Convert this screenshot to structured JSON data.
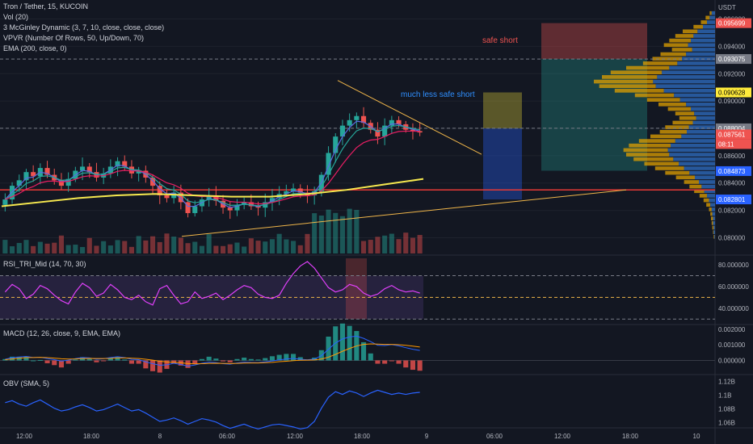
{
  "legend": {
    "symbol_line": "Tron / Tether, 15, KUCOIN",
    "vol": "Vol (20)",
    "mcginley": "3 McGinley Dynamic (3, 7, 10, close, close, close)",
    "vpvr": "VPVR (Number Of Rows, 50, Up/Down, 70)",
    "ema": "EMA (200, close, 0)"
  },
  "annotations": {
    "safe_short": "safe short",
    "much_less_safe_short": "much less safe short"
  },
  "panels": {
    "rsi": "RSI_TRI_Mid (14, 70, 30)",
    "macd": "MACD (12, 26, close, 9, EMA, EMA)",
    "obv": "OBV (SMA, 5)"
  },
  "colors": {
    "background": "#131722",
    "up": "#26a69a",
    "down": "#ef5350",
    "ema200": "#f7e94f",
    "mcginley1": "#5b6be0",
    "mcginley2": "#26a69a",
    "mcginley3": "#e91e63",
    "poc_line": "#e53935",
    "rsi_line": "#e040fb",
    "macd": "#2962ff",
    "signal": "#ff9800",
    "obv": "#2962ff",
    "vpvr_up": "#2f6fc4",
    "vpvr_down": "#e0a000",
    "label_yellow": "#ffeb3b"
  },
  "chart_data": [
    {
      "type": "candlestick",
      "title": "Tron / Tether, 15, KUCOIN",
      "y_axis_unit": "USDT",
      "x_tick_labels": [
        "12:00",
        "18:00",
        "8",
        "06:00",
        "12:00",
        "18:00",
        "9",
        "06:00",
        "12:00",
        "18:00",
        "10"
      ],
      "y_tick_labels": [
        "0.096000",
        "0.094000",
        "0.092000",
        "0.090000",
        "0.088000",
        "0.086000",
        "0.084000",
        "0.082000",
        "0.080000"
      ],
      "ylim": [
        0.0792,
        0.0968
      ],
      "price_labels": [
        {
          "text": "0.095699",
          "value": 0.095699,
          "color": "#ef5350",
          "text_color": "#ffffff"
        },
        {
          "text": "0.093075",
          "value": 0.093075,
          "color": "#787b86",
          "text_color": "#ffffff"
        },
        {
          "text": "0.090628",
          "value": 0.090628,
          "color": "#ffeb3b",
          "text_color": "#000000"
        },
        {
          "text": "0.088004",
          "value": 0.088004,
          "color": "#787b86",
          "text_color": "#ffffff"
        },
        {
          "text": "0.087561",
          "value": 0.087561,
          "color": "#ef5350",
          "text_color": "#ffffff"
        },
        {
          "text": "08:11",
          "value": null,
          "color": "#ef5350",
          "text_color": "#ffffff"
        },
        {
          "text": "0.084873",
          "value": 0.084873,
          "color": "#2962ff",
          "text_color": "#ffffff"
        },
        {
          "text": "0.082801",
          "value": 0.082801,
          "color": "#2962ff",
          "text_color": "#ffffff"
        }
      ],
      "horizontal_levels": [
        {
          "value": 0.093075,
          "style": "dashed",
          "color": "#787b86"
        },
        {
          "value": 0.088004,
          "style": "dashed",
          "color": "#787b86"
        },
        {
          "value": 0.0835,
          "style": "solid",
          "color": "#e53935"
        }
      ],
      "close_path": [
        0.0828,
        0.0838,
        0.0842,
        0.0848,
        0.0845,
        0.0851,
        0.0846,
        0.0842,
        0.0838,
        0.0843,
        0.0849,
        0.0852,
        0.0848,
        0.0844,
        0.0847,
        0.0852,
        0.0856,
        0.0852,
        0.0847,
        0.0849,
        0.0844,
        0.0838,
        0.0831,
        0.0829,
        0.0833,
        0.0826,
        0.0818,
        0.0823,
        0.0828,
        0.0831,
        0.0827,
        0.0822,
        0.082,
        0.0824,
        0.0826,
        0.0823,
        0.0822,
        0.0826,
        0.0829,
        0.0832,
        0.0834,
        0.0836,
        0.0833,
        0.0831,
        0.0834,
        0.0846,
        0.0862,
        0.0874,
        0.0882,
        0.0886,
        0.0889,
        0.0884,
        0.0879,
        0.0874,
        0.0882,
        0.0886,
        0.0883,
        0.0879,
        0.0878,
        0.0877
      ],
      "ema200": [
        0.0823,
        0.0826,
        0.0829,
        0.0831,
        0.0832,
        0.0831,
        0.083,
        0.083,
        0.0832,
        0.0835,
        0.0839,
        0.0843
      ],
      "vpvr_levels": {
        "up": [
          0.5,
          0.8,
          1.2,
          1.8,
          2.6,
          3.2,
          3.6,
          4.0,
          3.4,
          4.3,
          4.9,
          5.6,
          6.8,
          7.9,
          8.6,
          9.2,
          8.8,
          7.6,
          6.1,
          5.2,
          4.3,
          3.6,
          3.1,
          2.8,
          3.3,
          3.9,
          4.2,
          5.0,
          5.9,
          6.6,
          7.0,
          6.8,
          6.2,
          5.4,
          4.6,
          3.8,
          3.0,
          2.4,
          2.0,
          1.6,
          1.2,
          0.9,
          0.7,
          0.5,
          0.4,
          0.3,
          0.3,
          0.2,
          0.2,
          0.1
        ],
        "down": [
          0.3,
          0.6,
          0.9,
          1.4,
          2.2,
          2.7,
          3.2,
          3.6,
          3.0,
          3.8,
          4.4,
          5.1,
          6.4,
          7.6,
          8.2,
          8.8,
          8.4,
          7.3,
          5.8,
          4.9,
          4.1,
          3.4,
          2.8,
          2.5,
          3.0,
          3.5,
          4.0,
          4.6,
          5.4,
          6.2,
          6.6,
          6.4,
          5.9,
          5.1,
          4.3,
          3.6,
          2.8,
          2.2,
          1.8,
          1.5,
          1.1,
          0.8,
          0.6,
          0.4,
          0.3,
          0.3,
          0.2,
          0.2,
          0.1,
          0.1
        ]
      }
    },
    {
      "type": "line",
      "title": "RSI_TRI_Mid (14, 70, 30)",
      "y_tick_labels": [
        "80.000000",
        "60.000000",
        "40.000000"
      ],
      "ylim": [
        28,
        86
      ],
      "levels": [
        70,
        50,
        30
      ],
      "values": [
        55,
        62,
        58,
        49,
        53,
        61,
        58,
        52,
        47,
        44,
        55,
        63,
        59,
        51,
        54,
        62,
        57,
        50,
        48,
        52,
        46,
        43,
        58,
        61,
        52,
        44,
        46,
        55,
        49,
        51,
        54,
        48,
        52,
        57,
        61,
        59,
        53,
        50,
        49,
        52,
        63,
        72,
        79,
        83,
        77,
        68,
        59,
        55,
        57,
        62,
        60,
        54,
        51,
        53,
        58,
        61,
        57,
        55,
        56,
        54
      ]
    },
    {
      "type": "bar",
      "title": "MACD (12, 26, close, 9, EMA, EMA)",
      "y_tick_labels": [
        "0.002000",
        "0.001000",
        "0.000000"
      ],
      "ylim": [
        -0.0007,
        0.0021
      ],
      "macd": [
        8e-05,
        0.00018,
        0.00022,
        0.00026,
        0.00019,
        0.00021,
        0.00012,
        5e-05,
        -4e-05,
        2e-05,
        0.00012,
        0.00019,
        0.00016,
        8e-05,
        0.00011,
        0.00019,
        0.00024,
        0.00018,
        7e-05,
        5e-05,
        -9e-05,
        -0.00021,
        -0.00031,
        -0.00028,
        -0.00018,
        -0.00026,
        -0.00036,
        -0.00029,
        -0.00018,
        -0.00011,
        -0.00014,
        -0.00021,
        -0.00024,
        -0.00016,
        -0.00011,
        -0.00013,
        -0.00014,
        -9e-05,
        -3e-05,
        4e-05,
        9e-05,
        0.00013,
        8e-05,
        4e-05,
        9e-05,
        0.00031,
        0.00072,
        0.00112,
        0.00138,
        0.00151,
        0.00156,
        0.00142,
        0.00121,
        0.00098,
        0.00096,
        0.00102,
        0.00094,
        0.00082,
        0.00072,
        0.00064
      ],
      "signal": [
        5e-05,
        0.0001,
        0.00014,
        0.00018,
        0.00019,
        0.0002,
        0.00018,
        0.00015,
        0.00011,
        9e-05,
        0.0001,
        0.00012,
        0.00013,
        0.00012,
        0.00012,
        0.00013,
        0.00016,
        0.00016,
        0.00014,
        0.00012,
        8e-05,
        2e-05,
        -5e-05,
        -0.0001,
        -0.00012,
        -0.00015,
        -0.0002,
        -0.00022,
        -0.00021,
        -0.00019,
        -0.00018,
        -0.00019,
        -0.0002,
        -0.00019,
        -0.00017,
        -0.00016,
        -0.00016,
        -0.00014,
        -0.00012,
        -8e-05,
        -5e-05,
        -1e-05,
        1e-05,
        2e-05,
        3e-05,
        9e-05,
        0.00021,
        0.00039,
        0.00059,
        0.00077,
        0.00093,
        0.00103,
        0.00106,
        0.00105,
        0.00103,
        0.00103,
        0.00101,
        0.00097,
        0.00092,
        0.00086
      ]
    },
    {
      "type": "line",
      "title": "OBV (SMA, 5)",
      "y_tick_labels": [
        "1.12B",
        "1.1B",
        "1.08B",
        "1.06B"
      ],
      "ylim": [
        1.055,
        1.125
      ],
      "values": [
        1.089,
        1.092,
        1.087,
        1.084,
        1.089,
        1.093,
        1.087,
        1.081,
        1.077,
        1.079,
        1.083,
        1.086,
        1.082,
        1.077,
        1.079,
        1.083,
        1.087,
        1.082,
        1.077,
        1.079,
        1.074,
        1.068,
        1.062,
        1.064,
        1.067,
        1.063,
        1.058,
        1.062,
        1.066,
        1.064,
        1.061,
        1.056,
        1.052,
        1.055,
        1.058,
        1.054,
        1.051,
        1.054,
        1.057,
        1.058,
        1.056,
        1.054,
        1.051,
        1.053,
        1.062,
        1.081,
        1.097,
        1.105,
        1.101,
        1.106,
        1.103,
        1.098,
        1.103,
        1.107,
        1.104,
        1.101,
        1.103,
        1.101,
        1.103,
        1.104
      ]
    }
  ]
}
